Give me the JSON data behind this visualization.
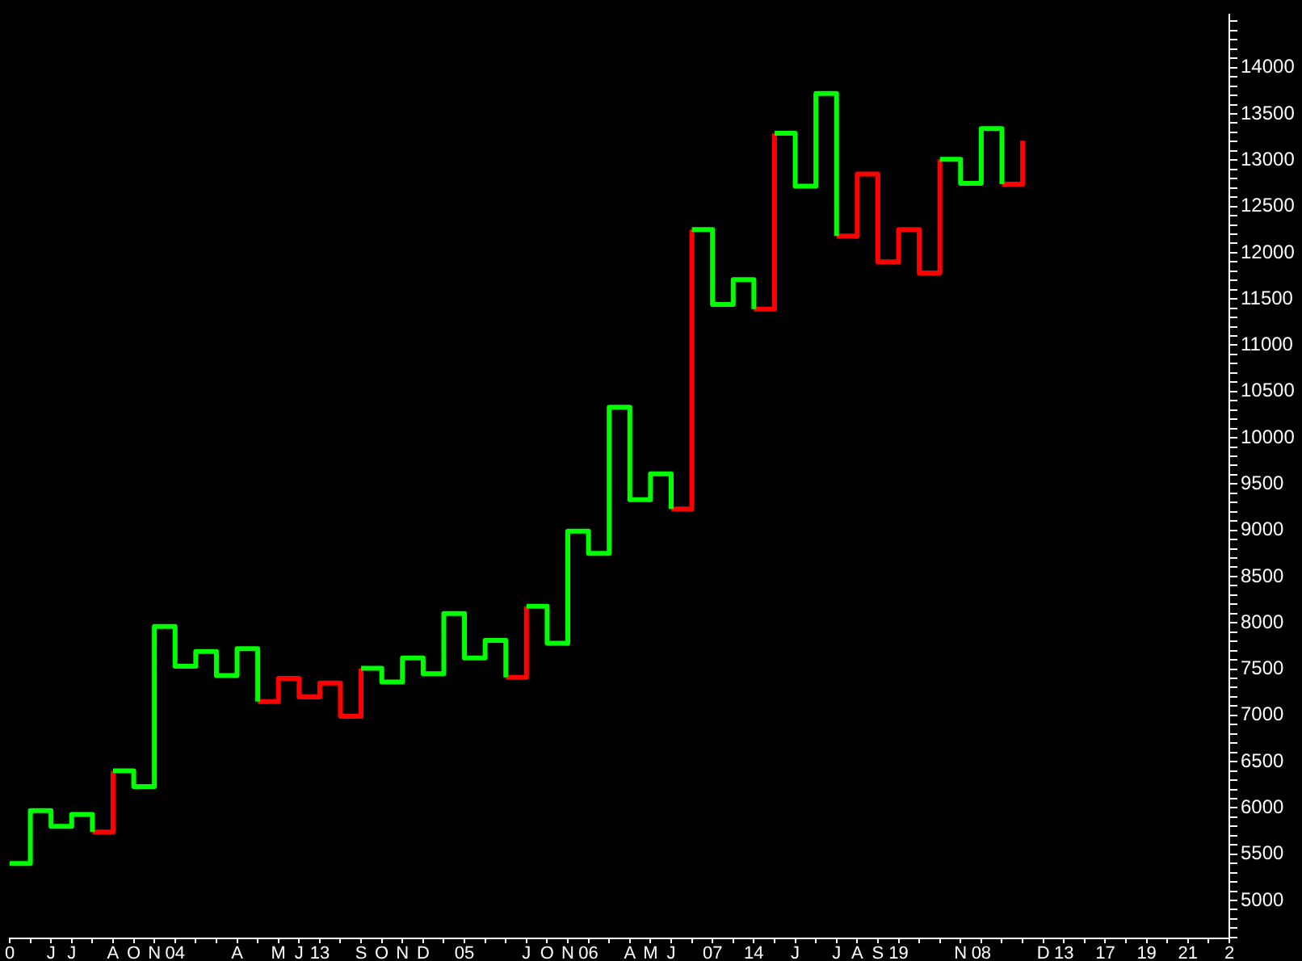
{
  "chart_data": {
    "type": "step",
    "legend": false,
    "grid": false,
    "marker": "none",
    "categories": [
      "0",
      null,
      "J",
      "J",
      null,
      "A",
      "O",
      "N",
      "04",
      null,
      null,
      "A",
      null,
      "M",
      "J",
      "13",
      null,
      "S",
      "O",
      "N",
      "D",
      null,
      "05",
      null,
      null,
      "J",
      "O",
      "N",
      "06",
      null,
      "A",
      "M",
      "J",
      null,
      "07",
      null,
      "14",
      null,
      "J",
      null,
      "J",
      "A",
      "S",
      "19",
      null,
      null,
      "N",
      "08",
      null,
      null,
      "D",
      "13",
      null,
      "17",
      null,
      "19",
      null,
      "21",
      null,
      "2"
    ],
    "series": [
      {
        "color": "#00ff00",
        "values": [
          5400,
          5970,
          5800,
          5930,
          5740,
          6400,
          6230,
          7960,
          7530,
          7690,
          7430,
          7720,
          7150,
          null,
          null,
          null,
          null,
          7510,
          7360,
          7620,
          7450,
          8100,
          7620,
          7810,
          7410,
          8180,
          7780,
          8990,
          8750,
          10330,
          9330,
          9610,
          9230,
          12250,
          11440,
          11710,
          11390,
          13290,
          12720,
          13720,
          12180,
          null,
          null,
          null,
          null,
          13010,
          12750,
          13340,
          12740,
          null,
          null,
          null,
          null,
          null,
          null,
          null,
          null,
          null,
          null,
          null
        ]
      },
      {
        "color": "#ff0000",
        "values": [
          null,
          null,
          null,
          null,
          5740,
          6400,
          null,
          null,
          null,
          null,
          null,
          null,
          7150,
          7400,
          7200,
          7350,
          6990,
          7510,
          null,
          null,
          null,
          null,
          null,
          null,
          7410,
          8180,
          null,
          null,
          null,
          null,
          null,
          null,
          9230,
          12250,
          null,
          null,
          11390,
          13290,
          null,
          null,
          12180,
          12850,
          11900,
          12250,
          11780,
          13010,
          null,
          null,
          12740,
          13210,
          null,
          null,
          null,
          null,
          null,
          null,
          null,
          null,
          null,
          null
        ]
      }
    ],
    "ylim": [
      4590,
      14570
    ],
    "yticks": [
      {
        "value": 4600,
        "label": null
      },
      {
        "value": 4700,
        "label": null
      },
      {
        "value": 4800,
        "label": null
      },
      {
        "value": 4900,
        "label": null
      },
      5000,
      {
        "value": 5100,
        "label": null
      },
      {
        "value": 5200,
        "label": null
      },
      {
        "value": 5300,
        "label": null
      },
      {
        "value": 5400,
        "label": null
      },
      5500,
      {
        "value": 5600,
        "label": null
      },
      {
        "value": 5700,
        "label": null
      },
      {
        "value": 5800,
        "label": null
      },
      {
        "value": 5900,
        "label": null
      },
      6000,
      {
        "value": 6100,
        "label": null
      },
      {
        "value": 6200,
        "label": null
      },
      {
        "value": 6300,
        "label": null
      },
      {
        "value": 6400,
        "label": null
      },
      6500,
      {
        "value": 6600,
        "label": null
      },
      {
        "value": 6700,
        "label": null
      },
      {
        "value": 6800,
        "label": null
      },
      {
        "value": 6900,
        "label": null
      },
      7000,
      {
        "value": 7100,
        "label": null
      },
      {
        "value": 7200,
        "label": null
      },
      {
        "value": 7300,
        "label": null
      },
      {
        "value": 7400,
        "label": null
      },
      7500,
      {
        "value": 7600,
        "label": null
      },
      {
        "value": 7700,
        "label": null
      },
      {
        "value": 7800,
        "label": null
      },
      {
        "value": 7900,
        "label": null
      },
      8000,
      {
        "value": 8100,
        "label": null
      },
      {
        "value": 8200,
        "label": null
      },
      {
        "value": 8300,
        "label": null
      },
      {
        "value": 8400,
        "label": null
      },
      8500,
      {
        "value": 8600,
        "label": null
      },
      {
        "value": 8700,
        "label": null
      },
      {
        "value": 8800,
        "label": null
      },
      {
        "value": 8900,
        "label": null
      },
      9000,
      {
        "value": 9100,
        "label": null
      },
      {
        "value": 9200,
        "label": null
      },
      {
        "value": 9300,
        "label": null
      },
      {
        "value": 9400,
        "label": null
      },
      9500,
      {
        "value": 9600,
        "label": null
      },
      {
        "value": 9700,
        "label": null
      },
      {
        "value": 9800,
        "label": null
      },
      {
        "value": 9900,
        "label": null
      },
      10000,
      {
        "value": 10100,
        "label": null
      },
      {
        "value": 10200,
        "label": null
      },
      {
        "value": 10300,
        "label": null
      },
      {
        "value": 10400,
        "label": null
      },
      10500,
      {
        "value": 10600,
        "label": null
      },
      {
        "value": 10700,
        "label": null
      },
      {
        "value": 10800,
        "label": null
      },
      {
        "value": 10900,
        "label": null
      },
      11000,
      {
        "value": 11100,
        "label": null
      },
      {
        "value": 11200,
        "label": null
      },
      {
        "value": 11300,
        "label": null
      },
      {
        "value": 11400,
        "label": null
      },
      11500,
      {
        "value": 11600,
        "label": null
      },
      {
        "value": 11700,
        "label": null
      },
      {
        "value": 11800,
        "label": null
      },
      {
        "value": 11900,
        "label": null
      },
      12000,
      {
        "value": 12100,
        "label": null
      },
      {
        "value": 12200,
        "label": null
      },
      {
        "value": 12300,
        "label": null
      },
      {
        "value": 12400,
        "label": null
      },
      12500,
      {
        "value": 12600,
        "label": null
      },
      {
        "value": 12700,
        "label": null
      },
      {
        "value": 12800,
        "label": null
      },
      {
        "value": 12900,
        "label": null
      },
      13000,
      {
        "value": 13100,
        "label": null
      },
      {
        "value": 13200,
        "label": null
      },
      {
        "value": 13300,
        "label": null
      },
      {
        "value": 13400,
        "label": null
      },
      13500,
      {
        "value": 13600,
        "label": null
      },
      {
        "value": 13700,
        "label": null
      },
      {
        "value": 13800,
        "label": null
      },
      {
        "value": 13900,
        "label": null
      },
      14000,
      {
        "value": 14100,
        "label": null
      },
      {
        "value": 14200,
        "label": null
      },
      {
        "value": 14300,
        "label": null
      },
      {
        "value": 14400,
        "label": null
      },
      {
        "value": 14500,
        "label": null
      }
    ]
  }
}
